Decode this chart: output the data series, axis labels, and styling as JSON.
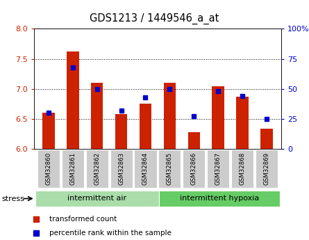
{
  "title": "GDS1213 / 1449546_a_at",
  "samples": [
    "GSM32860",
    "GSM32861",
    "GSM32862",
    "GSM32863",
    "GSM32864",
    "GSM32865",
    "GSM32866",
    "GSM32867",
    "GSM32868",
    "GSM32869"
  ],
  "transformed_count": [
    6.6,
    7.62,
    7.1,
    6.58,
    6.75,
    7.1,
    6.28,
    7.04,
    6.87,
    6.33
  ],
  "percentile_rank": [
    30,
    68,
    50,
    32,
    43,
    50,
    27,
    48,
    44,
    25
  ],
  "bar_color": "#cc2200",
  "dot_color": "#0000cc",
  "bar_bottom": 6.0,
  "ylim_left": [
    6.0,
    8.0
  ],
  "ylim_right": [
    0,
    100
  ],
  "yticks_left": [
    6.0,
    6.5,
    7.0,
    7.5,
    8.0
  ],
  "yticks_right": [
    0,
    25,
    50,
    75,
    100
  ],
  "group1_label": "intermittent air",
  "group2_label": "intermittent hypoxia",
  "stress_label": "stress",
  "legend_bar_label": "transformed count",
  "legend_dot_label": "percentile rank within the sample",
  "group1_color": "#aaddaa",
  "group2_color": "#66cc66",
  "left_axis_color": "#cc2200",
  "right_axis_color": "#0000cc",
  "box_color": "#cccccc"
}
